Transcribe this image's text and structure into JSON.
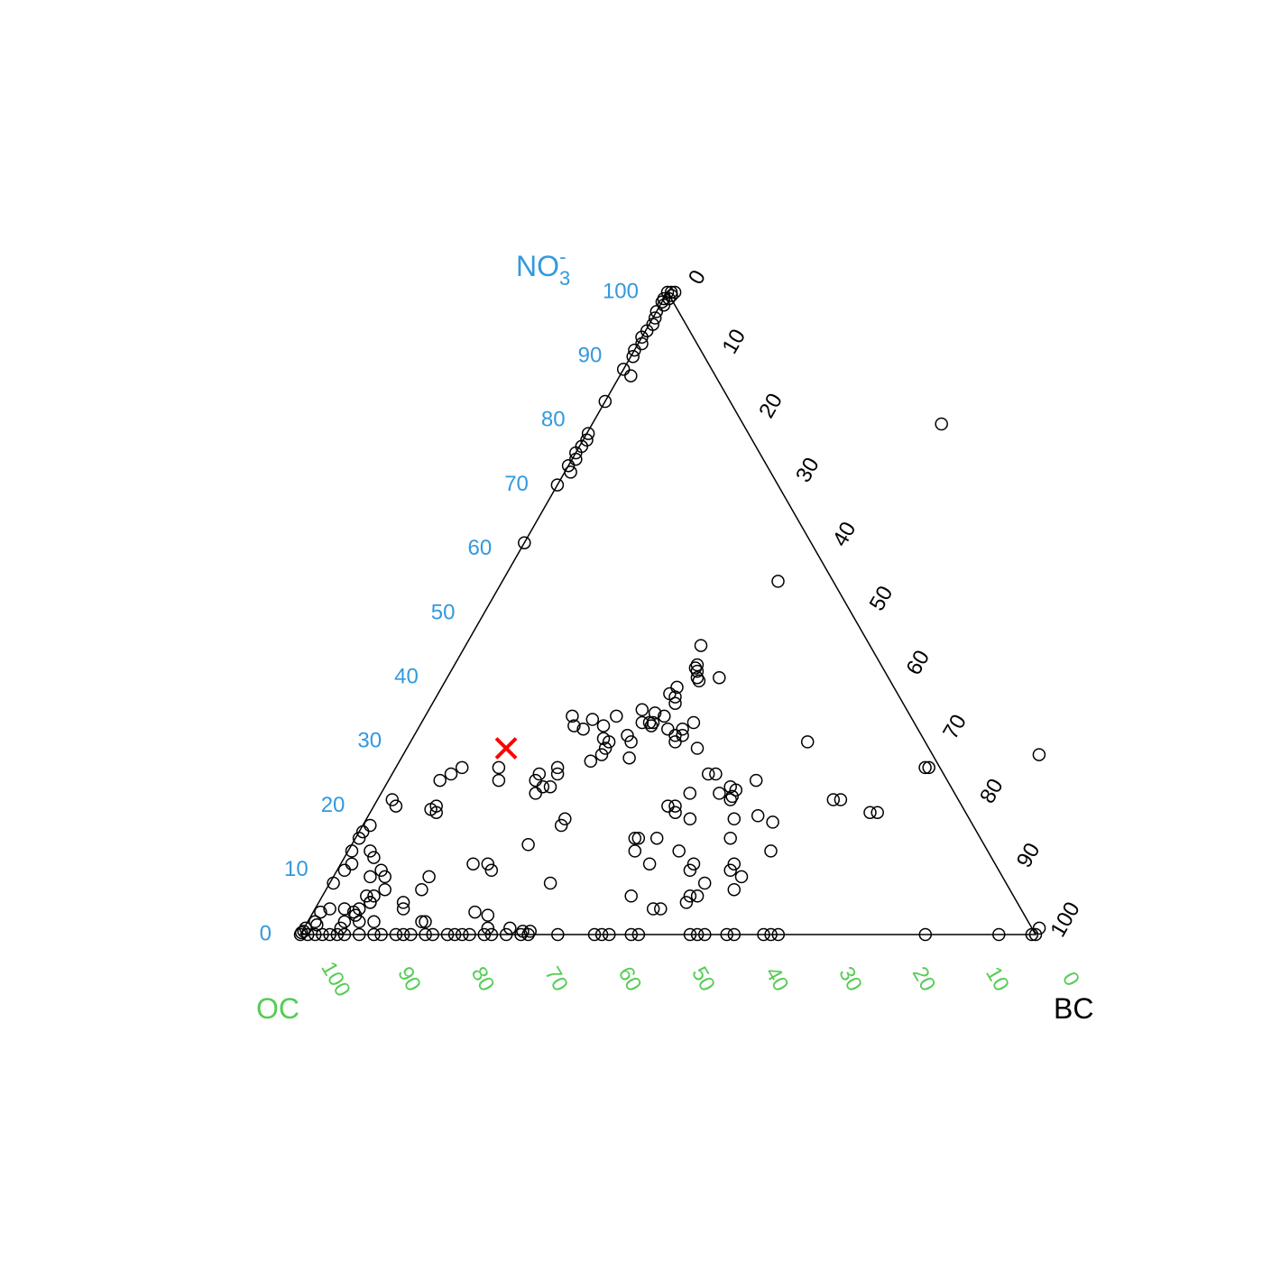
{
  "chart_data": {
    "type": "scatter",
    "subtype": "ternary",
    "axes": {
      "top": {
        "label": "NO",
        "label_sub": "3",
        "label_sup": "-",
        "color": "#3399dd",
        "ticks": [
          "0",
          "10",
          "20",
          "30",
          "40",
          "50",
          "60",
          "70",
          "80",
          "90",
          "100"
        ]
      },
      "left": {
        "label": "OC",
        "color": "#55cc55",
        "ticks": [
          "100",
          "90",
          "80",
          "70",
          "60",
          "50",
          "40",
          "30",
          "20",
          "10",
          "0"
        ]
      },
      "right": {
        "label": "BC",
        "color": "#000000",
        "ticks": [
          "0",
          "10",
          "20",
          "30",
          "40",
          "50",
          "60",
          "70",
          "80",
          "90",
          "100"
        ]
      }
    },
    "points_unit": "[NO3 %, BC %]",
    "points": [
      [
        100,
        0
      ],
      [
        100,
        0.5
      ],
      [
        99,
        0
      ],
      [
        99,
        0.7
      ],
      [
        98.5,
        0
      ],
      [
        98,
        0.5
      ],
      [
        97,
        0
      ],
      [
        96,
        0.3
      ],
      [
        95,
        0.5
      ],
      [
        94,
        0.2
      ],
      [
        93,
        0
      ],
      [
        92,
        0.5
      ],
      [
        91,
        0
      ],
      [
        90,
        0.3
      ],
      [
        88,
        0
      ],
      [
        87,
        1.5
      ],
      [
        83,
        0
      ],
      [
        78,
        0.2
      ],
      [
        77,
        0.5
      ],
      [
        76,
        0.3
      ],
      [
        75,
        0
      ],
      [
        74,
        0.5
      ],
      [
        73,
        0
      ],
      [
        72,
        0.8
      ],
      [
        70,
        0
      ],
      [
        61,
        0
      ],
      [
        100,
        1
      ],
      [
        99.5,
        0.8
      ],
      [
        79.5,
        47.5
      ],
      [
        55,
        37.5
      ],
      [
        28,
        86.5
      ],
      [
        45,
        32
      ],
      [
        42,
        33
      ],
      [
        41.5,
        33
      ],
      [
        41,
        33.5
      ],
      [
        40,
        34
      ],
      [
        39.5,
        34.5
      ],
      [
        40,
        37
      ],
      [
        38.5,
        32
      ],
      [
        37.5,
        31.5
      ],
      [
        37,
        32.5
      ],
      [
        36,
        33
      ],
      [
        35,
        29
      ],
      [
        34,
        32.5
      ],
      [
        34.5,
        31
      ],
      [
        33,
        31.5
      ],
      [
        33,
        31
      ],
      [
        32.5,
        31.5
      ],
      [
        33,
        30
      ],
      [
        34,
        26
      ],
      [
        34,
        20
      ],
      [
        32,
        34
      ],
      [
        31,
        35.5
      ],
      [
        31,
        29
      ],
      [
        30,
        30
      ],
      [
        29,
        39.5
      ],
      [
        29,
        27
      ],
      [
        32.5,
        25
      ],
      [
        33.5,
        23
      ],
      [
        32,
        22.5
      ],
      [
        32.5,
        21
      ],
      [
        30.5,
        26
      ],
      [
        30,
        27
      ],
      [
        28,
        27
      ],
      [
        27,
        26
      ],
      [
        27.5,
        31
      ],
      [
        26,
        22
      ],
      [
        25,
        22.5
      ],
      [
        25,
        20
      ],
      [
        24,
        20
      ],
      [
        23,
        22.5
      ],
      [
        22,
        21
      ],
      [
        18,
        27
      ],
      [
        17,
        27
      ],
      [
        26,
        9
      ],
      [
        20,
        8.5
      ],
      [
        19,
        9
      ],
      [
        19.5,
        8
      ],
      [
        30,
        54
      ],
      [
        22.5,
        48
      ],
      [
        21.5,
        48
      ],
      [
        21,
        48
      ],
      [
        26,
        14
      ],
      [
        24,
        7
      ],
      [
        23,
        21.5
      ],
      [
        25,
        8
      ],
      [
        18,
        44
      ],
      [
        13,
        39
      ],
      [
        11,
        42
      ],
      [
        10,
        21
      ],
      [
        30,
        36
      ],
      [
        31,
        36.5
      ],
      [
        33,
        37
      ],
      [
        32,
        36
      ],
      [
        22,
        42
      ],
      [
        20,
        40
      ],
      [
        20,
        41
      ],
      [
        19,
        41.5
      ],
      [
        15,
        41
      ],
      [
        15,
        38.5
      ],
      [
        15,
        38
      ],
      [
        13,
        45
      ],
      [
        26,
        72
      ],
      [
        26,
        72.5
      ],
      [
        19,
        68
      ],
      [
        19,
        69
      ],
      [
        25,
        44
      ],
      [
        25,
        43
      ],
      [
        23,
        47
      ],
      [
        22,
        46
      ],
      [
        24,
        50
      ],
      [
        18,
        50
      ],
      [
        18.5,
        53
      ],
      [
        15,
        51
      ],
      [
        21,
        62
      ],
      [
        21,
        63
      ],
      [
        17.5,
        55.5
      ],
      [
        13,
        57.5
      ],
      [
        10,
        53.5
      ],
      [
        11,
        53.5
      ],
      [
        9,
        55.5
      ],
      [
        7,
        55.5
      ],
      [
        8,
        51
      ],
      [
        6,
        42
      ],
      [
        6,
        50
      ],
      [
        6,
        51
      ],
      [
        10,
        48
      ],
      [
        11,
        48
      ],
      [
        5,
        50
      ],
      [
        4,
        46
      ],
      [
        4,
        47
      ],
      [
        8,
        30
      ],
      [
        14,
        24
      ],
      [
        11,
        18
      ],
      [
        9,
        13
      ],
      [
        7,
        13
      ],
      [
        5,
        11.5
      ],
      [
        4,
        12
      ],
      [
        3.5,
        22
      ],
      [
        3,
        24
      ],
      [
        2,
        9
      ],
      [
        2,
        15.5
      ],
      [
        2,
        16
      ],
      [
        1,
        25
      ],
      [
        1,
        28
      ],
      [
        0.5,
        30
      ],
      [
        0.5,
        31
      ],
      [
        0,
        31
      ],
      [
        0,
        35
      ],
      [
        0,
        40
      ],
      [
        0,
        41
      ],
      [
        0,
        45
      ],
      [
        0,
        46
      ],
      [
        0,
        53
      ],
      [
        0,
        54
      ],
      [
        0,
        55
      ],
      [
        0,
        58
      ],
      [
        0,
        59
      ],
      [
        0,
        63
      ],
      [
        0,
        64
      ],
      [
        0,
        85
      ],
      [
        0,
        65
      ],
      [
        0,
        95
      ],
      [
        0,
        99.5
      ],
      [
        0,
        100
      ],
      [
        1,
        100
      ],
      [
        0,
        8
      ],
      [
        0,
        10
      ],
      [
        0,
        11
      ],
      [
        0,
        13
      ],
      [
        0,
        14
      ],
      [
        0,
        15
      ],
      [
        0,
        17
      ],
      [
        0,
        18
      ],
      [
        0,
        20
      ],
      [
        0,
        21
      ],
      [
        0,
        22
      ],
      [
        0,
        23
      ],
      [
        0,
        25
      ],
      [
        0,
        26
      ],
      [
        0,
        28
      ],
      [
        0,
        30
      ],
      [
        0,
        42
      ],
      [
        0,
        2
      ],
      [
        0,
        3
      ],
      [
        0,
        4
      ],
      [
        0,
        5
      ],
      [
        0,
        6
      ],
      [
        0,
        0
      ],
      [
        0.3,
        0
      ],
      [
        0.5,
        0.2
      ],
      [
        1,
        0.2
      ],
      [
        0,
        1
      ],
      [
        2,
        5
      ],
      [
        2,
        7
      ],
      [
        1,
        5
      ],
      [
        4,
        4
      ],
      [
        5,
        7
      ],
      [
        6,
        6
      ],
      [
        3.5,
        1
      ],
      [
        4,
        2
      ],
      [
        2,
        1
      ],
      [
        1.5,
        1.5
      ],
      [
        8,
        0.5
      ],
      [
        10,
        1
      ],
      [
        11,
        1.5
      ],
      [
        13,
        0.5
      ],
      [
        15,
        0.5
      ],
      [
        16,
        0.5
      ],
      [
        17,
        1
      ],
      [
        13,
        3
      ],
      [
        12,
        4
      ],
      [
        9,
        5
      ],
      [
        10,
        6
      ],
      [
        9,
        7
      ],
      [
        7,
        8
      ],
      [
        6,
        7
      ],
      [
        5,
        7
      ],
      [
        4,
        6
      ],
      [
        3,
        6
      ],
      [
        3.5,
        5.5
      ],
      [
        20,
        3
      ],
      [
        21,
        2
      ],
      [
        24,
        15
      ],
      [
        11,
        20
      ]
    ],
    "marker": {
      "label": "×",
      "color": "#ff0000",
      "point": [
        29,
        13.5
      ]
    }
  }
}
